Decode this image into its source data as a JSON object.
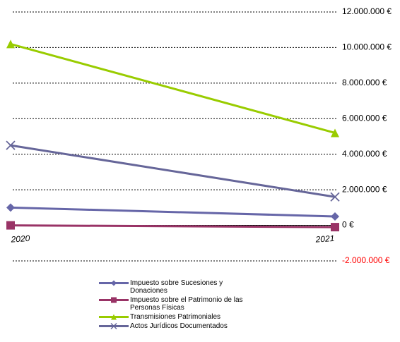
{
  "chart_data": {
    "type": "line",
    "categories": [
      "2020",
      "2021"
    ],
    "series": [
      {
        "name": "Impuesto sobre Sucesiones y Donaciones",
        "color": "#6666a8",
        "marker": "diamond",
        "values": [
          1000000,
          500000
        ]
      },
      {
        "name": "Impuesto sobre el Patrimonio de las Personas Físicas",
        "color": "#993366",
        "marker": "square",
        "values": [
          0,
          -100000
        ]
      },
      {
        "name": "Transmisiones Patrimoniales",
        "color": "#99cc00",
        "marker": "triangle",
        "values": [
          10200000,
          5200000
        ]
      },
      {
        "name": "Actos Jurídicos Documentados",
        "color": "#666699",
        "marker": "x",
        "values": [
          4500000,
          1600000
        ]
      }
    ],
    "ylim": [
      -2000000,
      12000000
    ],
    "yticks": [
      {
        "value": -2000000,
        "label": "-2.000.000 €"
      },
      {
        "value": 0,
        "label": "0 €"
      },
      {
        "value": 2000000,
        "label": "2.000.000 €"
      },
      {
        "value": 4000000,
        "label": "4.000.000 €"
      },
      {
        "value": 6000000,
        "label": "6.000.000 €"
      },
      {
        "value": 8000000,
        "label": "8.000.000 €"
      },
      {
        "value": 10000000,
        "label": "10.000.000 €"
      },
      {
        "value": 12000000,
        "label": "12.000.000 €"
      }
    ],
    "grid": true,
    "negative_tick_color": "#ff0000",
    "legend": "bottom"
  }
}
